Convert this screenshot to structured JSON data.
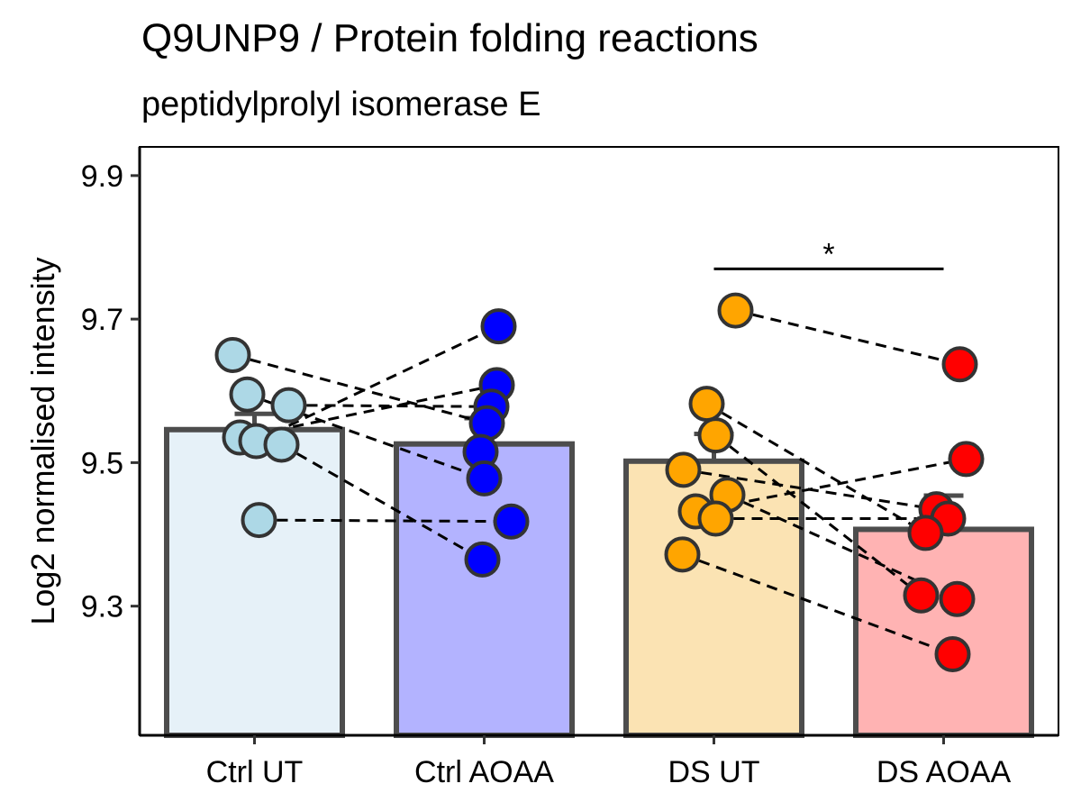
{
  "chart_data": {
    "type": "bar",
    "title": "Q9UNP9 / Protein folding reactions",
    "subtitle": "peptidylprolyl isomerase E",
    "xlabel": "",
    "ylabel": "Log2 normalised intensity",
    "ylim": [
      9.12,
      9.94
    ],
    "yticks": [
      9.3,
      9.5,
      9.7,
      9.9
    ],
    "ytick_labels": [
      "9.3",
      "9.5",
      "9.7",
      "9.9"
    ],
    "grid": false,
    "legend": "none",
    "categories": [
      "Ctrl UT",
      "Ctrl AOAA",
      "DS UT",
      "DS AOAA"
    ],
    "values": [
      9.546,
      9.526,
      9.502,
      9.407
    ],
    "error_upper": [
      9.568,
      9.562,
      9.54,
      9.454
    ],
    "bar_fill": [
      "#e6f1f8",
      "#b3b3ff",
      "#fbe3b3",
      "#ffb3b3"
    ],
    "point_fill": [
      "#add8e6",
      "#0000ff",
      "#ffa500",
      "#ff0000"
    ],
    "bar_outline": "#4d4d4d",
    "points": [
      [
        9.65,
        9.595,
        9.58,
        9.535,
        9.53,
        9.525,
        9.42
      ],
      [
        9.69,
        9.608,
        9.578,
        9.555,
        9.515,
        9.478,
        9.418,
        9.365
      ],
      [
        9.712,
        9.582,
        9.538,
        9.49,
        9.455,
        9.432,
        9.422,
        9.372
      ],
      [
        9.637,
        9.505,
        9.435,
        9.422,
        9.402,
        9.315,
        9.31,
        9.233
      ]
    ],
    "pairs": [
      {
        "from": [
          0,
          9.65
        ],
        "to": [
          1,
          9.555
        ]
      },
      {
        "from": [
          0,
          9.595
        ],
        "to": [
          1,
          9.478
        ]
      },
      {
        "from": [
          0,
          9.58
        ],
        "to": [
          1,
          9.578
        ]
      },
      {
        "from": [
          0,
          9.535
        ],
        "to": [
          1,
          9.608
        ]
      },
      {
        "from": [
          0,
          9.53
        ],
        "to": [
          1,
          9.69
        ]
      },
      {
        "from": [
          0,
          9.525
        ],
        "to": [
          1,
          9.365
        ]
      },
      {
        "from": [
          0,
          9.42
        ],
        "to": [
          1,
          9.418
        ]
      },
      {
        "from": [
          2,
          9.712
        ],
        "to": [
          3,
          9.637
        ]
      },
      {
        "from": [
          2,
          9.582
        ],
        "to": [
          3,
          9.402
        ]
      },
      {
        "from": [
          2,
          9.538
        ],
        "to": [
          3,
          9.315
        ]
      },
      {
        "from": [
          2,
          9.49
        ],
        "to": [
          3,
          9.435
        ]
      },
      {
        "from": [
          2,
          9.455
        ],
        "to": [
          3,
          9.31
        ]
      },
      {
        "from": [
          2,
          9.432
        ],
        "to": [
          3,
          9.505
        ]
      },
      {
        "from": [
          2,
          9.422
        ],
        "to": [
          3,
          9.422
        ]
      },
      {
        "from": [
          2,
          9.372
        ],
        "to": [
          3,
          9.233
        ]
      }
    ],
    "significance": [
      {
        "from": 2,
        "to": 3,
        "y": 9.77,
        "label": "*"
      }
    ]
  }
}
